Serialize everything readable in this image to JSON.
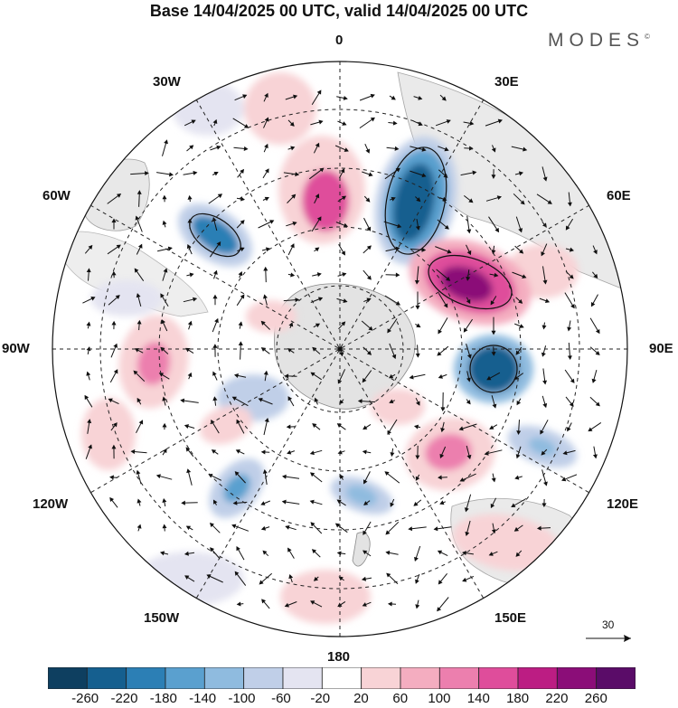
{
  "title": "Base 14/04/2025 00 UTC, valid 14/04/2025 00 UTC",
  "brand": {
    "name": "MODES",
    "mark": "©"
  },
  "longitude_labels": {
    "top": "0",
    "bottom": "180",
    "left": "90W",
    "right": "90E",
    "upper_left_1": "30W",
    "upper_left_2": "60W",
    "upper_right_1": "30E",
    "upper_right_2": "60E",
    "lower_left_1": "120W",
    "lower_left_2": "150W",
    "lower_right_1": "120E",
    "lower_right_2": "150E"
  },
  "wind_reference": {
    "value": "30"
  },
  "colorbar": {
    "tick_labels": [
      "-260",
      "-220",
      "-180",
      "-140",
      "-100",
      "-60",
      "-20",
      "20",
      "60",
      "100",
      "140",
      "180",
      "220",
      "260"
    ],
    "colors": [
      "#0e3f60",
      "#155f8f",
      "#2c7fb5",
      "#5aa0cf",
      "#8fbbdf",
      "#c0cfe8",
      "#e4e4f1",
      "#ffffff",
      "#f8d3d6",
      "#f4adc0",
      "#ec7fae",
      "#df4d9b",
      "#bc1d83",
      "#8b0d78",
      "#5a0c68"
    ]
  },
  "anomalies": [
    {
      "name": "neg-north-1",
      "value": -250,
      "color": "#155f8f"
    },
    {
      "name": "pos-east-1",
      "value": 250,
      "color": "#8b0d78"
    },
    {
      "name": "neg-east-1",
      "value": -220,
      "color": "#155f8f"
    },
    {
      "name": "neg-west-1",
      "value": -160,
      "color": "#2c7fb5"
    },
    {
      "name": "pos-north-1",
      "value": 140,
      "color": "#df4d9b"
    },
    {
      "name": "pos-west-1",
      "value": 120,
      "color": "#ec7fae"
    },
    {
      "name": "pos-southeast-1",
      "value": 130,
      "color": "#ec7fae"
    },
    {
      "name": "neg-south-1",
      "value": -140,
      "color": "#5aa0cf"
    },
    {
      "name": "neg-south-2",
      "value": -120,
      "color": "#8fbbdf"
    },
    {
      "name": "neg-southeast-2",
      "value": -100,
      "color": "#8fbbdf"
    }
  ]
}
